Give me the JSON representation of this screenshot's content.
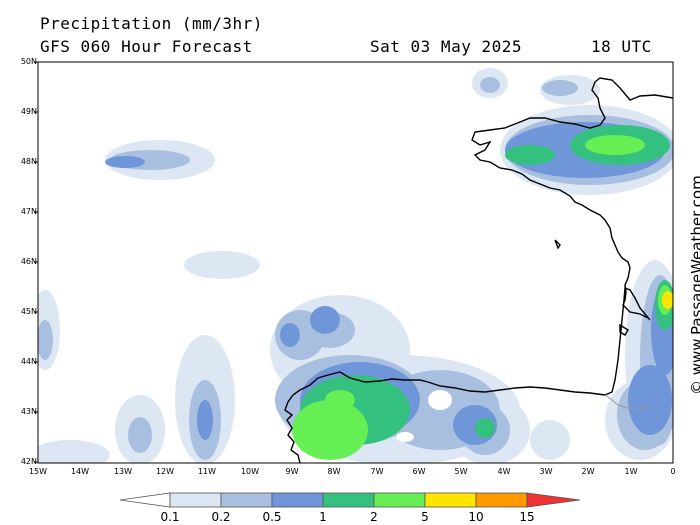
{
  "header": {
    "title": "Precipitation (mm/3hr)",
    "model": "GFS 060 Hour Forecast",
    "date": "Sat 03 May 2025",
    "time": "18 UTC"
  },
  "credit": "© www.PassageWeather.com",
  "map": {
    "lat_labels": [
      "50N",
      "49N",
      "48N",
      "47N",
      "46N",
      "45N",
      "44N",
      "43N",
      "42N"
    ],
    "lon_labels": [
      "15W",
      "14W",
      "13W",
      "12W",
      "11W",
      "10W",
      "9W",
      "8W",
      "7W",
      "6W",
      "5W",
      "4W",
      "3W",
      "2W",
      "1W",
      "0"
    ]
  },
  "colorbar": {
    "thresholds": [
      "0.1",
      "0.2",
      "0.5",
      "1",
      "2",
      "5",
      "10",
      "15"
    ],
    "colors": [
      "#ffffff",
      "#dde6f3",
      "#a8bfe0",
      "#6f96d8",
      "#34c07e",
      "#66ee55",
      "#ffe600",
      "#ff9900",
      "#ee3333"
    ]
  }
}
